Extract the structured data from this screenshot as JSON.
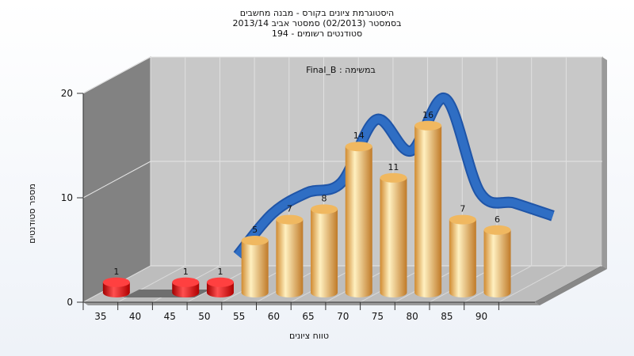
{
  "titles": {
    "line1": "היסטוגרמת ציונים בקורס - מבנה מחשבים",
    "line2": "בסמסטר  (02/2013)  סמסטר אביב 2013/14",
    "line3": "סטודנטים רשומים - 194"
  },
  "chart_data": {
    "type": "bar",
    "title": "היסטוגרמת ציונים בקורס - מבנה מחשבים",
    "subtitle": "Final_B : במשימה",
    "xlabel": "טווח ציונים",
    "ylabel": "מספר סטודנטים",
    "ylim": [
      0,
      20
    ],
    "yticks": [
      "0",
      "10",
      "20"
    ],
    "categories": [
      "35",
      "40",
      "45",
      "50",
      "55",
      "60",
      "65",
      "70",
      "75",
      "80",
      "85",
      "90"
    ],
    "x": [
      35,
      40,
      45,
      50,
      55,
      60,
      65,
      70,
      75,
      80,
      85,
      90
    ],
    "values": [
      1,
      0,
      1,
      1,
      5,
      7,
      8,
      14,
      11,
      16,
      7,
      6
    ],
    "bar_labels": [
      "1",
      "",
      "1",
      "1",
      "5",
      "7",
      "8",
      "14",
      "11",
      "16",
      "7",
      "6"
    ],
    "fail_threshold": 55,
    "colors": {
      "fail": "#e01010",
      "pass": "#e8a448",
      "curve": "#2f6ec4"
    },
    "grid": true,
    "style": "3d-cylinder"
  }
}
